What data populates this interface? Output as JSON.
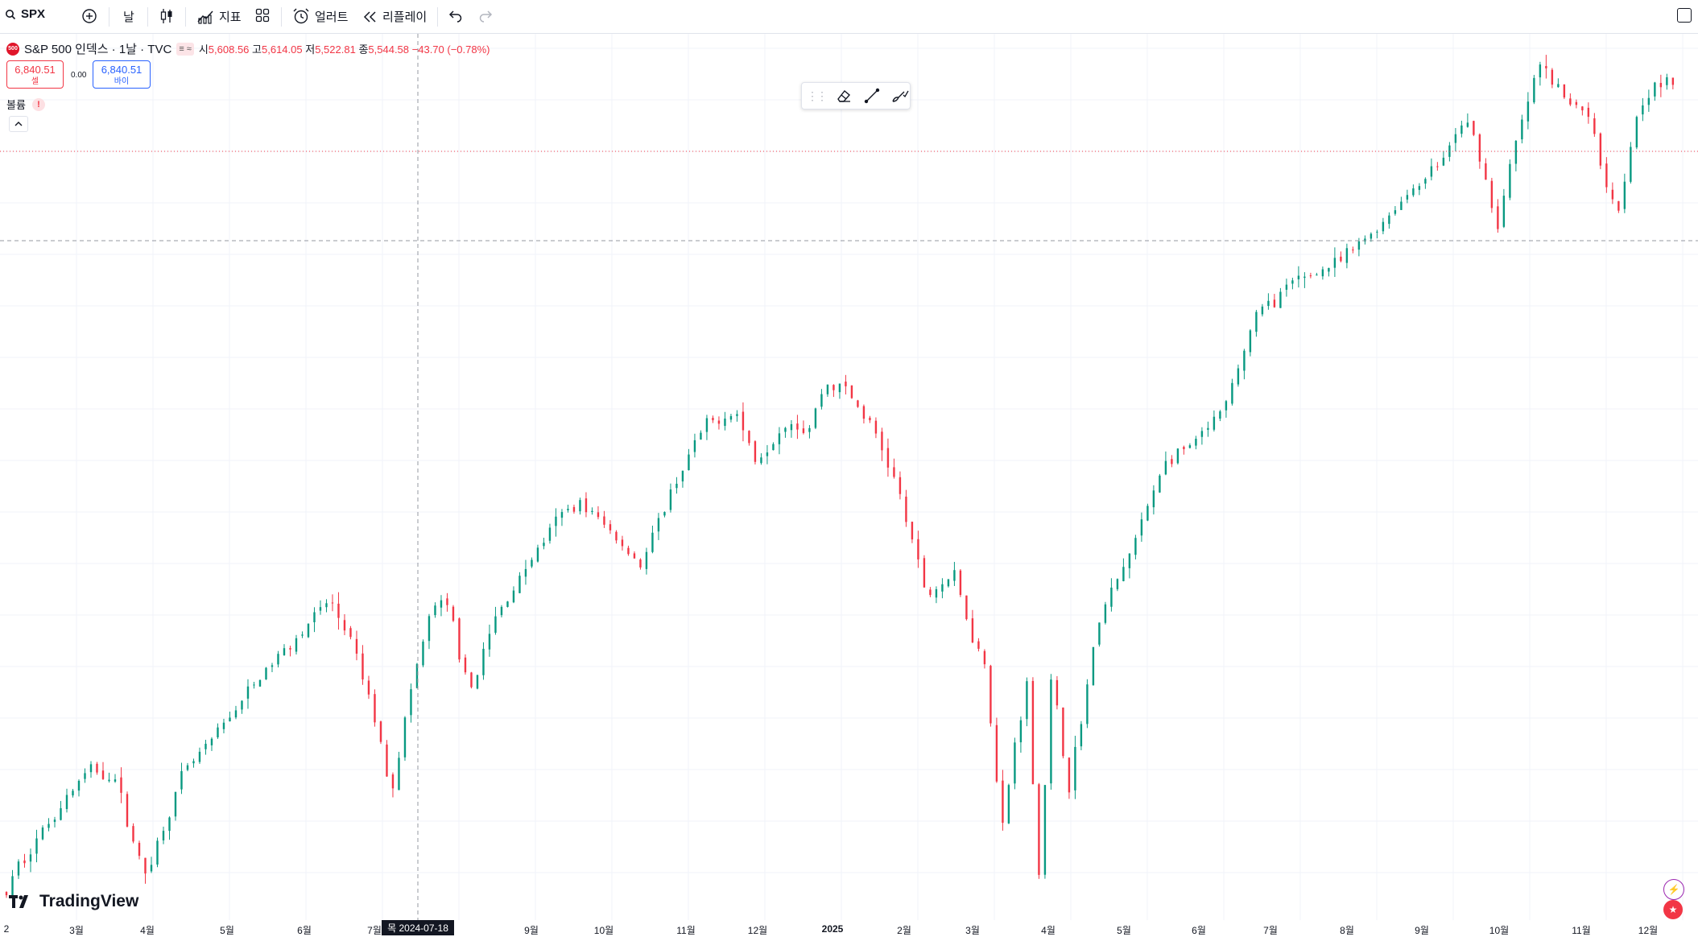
{
  "toolbar": {
    "symbol": "SPX",
    "interval": "날",
    "indicators": "지표",
    "alert": "얼러트",
    "replay": "리플레이"
  },
  "legend": {
    "title": "S&P 500 인덱스 · 1날 · TVC",
    "logo_text": "500",
    "open_label": "시",
    "open": "5,608.56",
    "high_label": "고",
    "high": "5,614.05",
    "low_label": "저",
    "low": "5,522.81",
    "close_label": "종",
    "close": "5,544.58",
    "change": "−43.70 (−0.78%)"
  },
  "trade": {
    "sell_price": "6,840.51",
    "sell_label": "셀",
    "spread": "0.00",
    "buy_price": "6,840.51",
    "buy_label": "바이"
  },
  "volume": {
    "label": "볼륨",
    "warning": "!"
  },
  "crosshair": {
    "date": "목 2024-07-18"
  },
  "brand": {
    "name": "TradingView"
  },
  "xaxis": [
    "2",
    "3월",
    "4월",
    "5월",
    "6월",
    "7월",
    "9월",
    "10월",
    "11월",
    "12월",
    "2025",
    "2월",
    "3월",
    "4월",
    "5월",
    "6월",
    "7월",
    "8월",
    "9월",
    "10월",
    "11월",
    "12월"
  ],
  "colors": {
    "up": "#089981",
    "down": "#f23645",
    "crosshair": "#9598a1",
    "grid": "#f0f3fa"
  },
  "chart_data": {
    "type": "candlestick",
    "symbol": "SPX",
    "interval": "1D",
    "ylim": [
      4900,
      6950
    ],
    "last_price": 6840.51,
    "price_line": 6500,
    "crosshair_date": "2024-07-18",
    "anchors": [
      {
        "d": 0,
        "p": 4960
      },
      {
        "d": 5,
        "p": 5020
      },
      {
        "d": 15,
        "p": 5090
      },
      {
        "d": 28,
        "p": 5180
      },
      {
        "d": 40,
        "p": 5250
      },
      {
        "d": 52,
        "p": 5230
      },
      {
        "d": 60,
        "p": 5100
      },
      {
        "d": 66,
        "p": 5000
      },
      {
        "d": 72,
        "p": 5070
      },
      {
        "d": 85,
        "p": 5240
      },
      {
        "d": 98,
        "p": 5310
      },
      {
        "d": 110,
        "p": 5390
      },
      {
        "d": 125,
        "p": 5480
      },
      {
        "d": 140,
        "p": 5560
      },
      {
        "d": 155,
        "p": 5640
      },
      {
        "d": 165,
        "p": 5550
      },
      {
        "d": 175,
        "p": 5400
      },
      {
        "d": 185,
        "p": 5200
      },
      {
        "d": 195,
        "p": 5450
      },
      {
        "d": 205,
        "p": 5630
      },
      {
        "d": 213,
        "p": 5620
      },
      {
        "d": 222,
        "p": 5420
      },
      {
        "d": 235,
        "p": 5600
      },
      {
        "d": 250,
        "p": 5720
      },
      {
        "d": 265,
        "p": 5830
      },
      {
        "d": 275,
        "p": 5870
      },
      {
        "d": 290,
        "p": 5800
      },
      {
        "d": 305,
        "p": 5720
      },
      {
        "d": 320,
        "p": 5900
      },
      {
        "d": 335,
        "p": 6040
      },
      {
        "d": 350,
        "p": 6080
      },
      {
        "d": 360,
        "p": 5960
      },
      {
        "d": 375,
        "p": 6060
      },
      {
        "d": 385,
        "p": 6030
      },
      {
        "d": 393,
        "p": 6140
      },
      {
        "d": 403,
        "p": 6130
      },
      {
        "d": 418,
        "p": 6020
      },
      {
        "d": 428,
        "p": 5900
      },
      {
        "d": 442,
        "p": 5650
      },
      {
        "d": 455,
        "p": 5700
      },
      {
        "d": 465,
        "p": 5540
      },
      {
        "d": 470,
        "p": 5500
      },
      {
        "d": 478,
        "p": 5100
      },
      {
        "d": 484,
        "p": 5300
      },
      {
        "d": 490,
        "p": 5450
      },
      {
        "d": 496,
        "p": 5000
      },
      {
        "d": 502,
        "p": 5470
      },
      {
        "d": 510,
        "p": 5200
      },
      {
        "d": 525,
        "p": 5600
      },
      {
        "d": 540,
        "p": 5750
      },
      {
        "d": 555,
        "p": 5950
      },
      {
        "d": 570,
        "p": 6000
      },
      {
        "d": 585,
        "p": 6080
      },
      {
        "d": 600,
        "p": 6300
      },
      {
        "d": 620,
        "p": 6380
      },
      {
        "d": 640,
        "p": 6420
      },
      {
        "d": 660,
        "p": 6510
      },
      {
        "d": 675,
        "p": 6590
      },
      {
        "d": 690,
        "p": 6660
      },
      {
        "d": 700,
        "p": 6750
      },
      {
        "d": 706,
        "p": 6700
      },
      {
        "d": 716,
        "p": 6500
      },
      {
        "d": 724,
        "p": 6680
      },
      {
        "d": 736,
        "p": 6880
      },
      {
        "d": 750,
        "p": 6790
      },
      {
        "d": 760,
        "p": 6770
      },
      {
        "d": 766,
        "p": 6640
      },
      {
        "d": 774,
        "p": 6540
      },
      {
        "d": 784,
        "p": 6790
      },
      {
        "d": 792,
        "p": 6830
      },
      {
        "d": 802,
        "p": 6840
      }
    ]
  }
}
